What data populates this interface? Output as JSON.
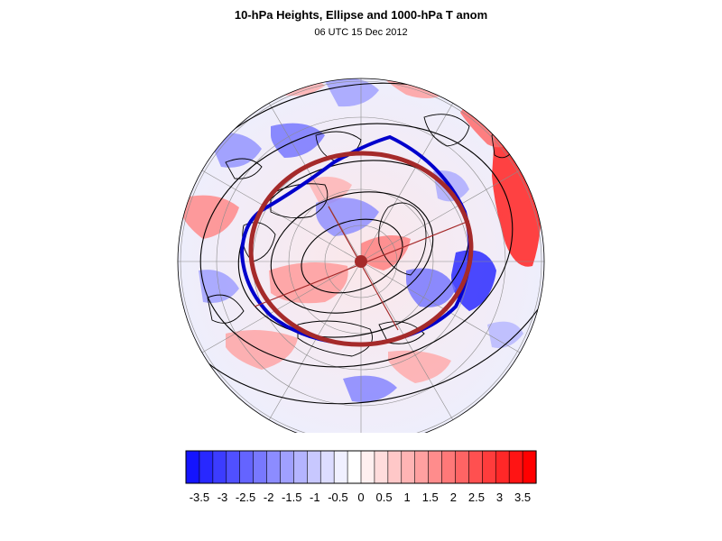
{
  "figure": {
    "title": "10-hPa Heights, Ellipse and 1000-hPa T anom",
    "subtitle": "06 UTC 15 Dec 2012"
  },
  "map": {
    "projection": "polar-stereographic-north",
    "fill_field": "1000-hPa temperature anomaly",
    "contour_field": "10-hPa geopotential height",
    "contour_color": "#000000",
    "coastline_color": "#000000",
    "graticule_color": "#8c8c8c",
    "vortex_edge_color": "#0000cc",
    "ellipse_color": "#a52a2a",
    "ellipse_center_marker": "filled-circle"
  },
  "colorbar": {
    "tick_labels": [
      "-3.5",
      "-3",
      "-2.5",
      "-2",
      "-1.5",
      "-1",
      "-0.5",
      "0",
      "0.5",
      "1",
      "1.5",
      "2",
      "2.5",
      "3",
      "3.5"
    ],
    "bins": [
      "#1414ff",
      "#2828ff",
      "#3c3cff",
      "#5050ff",
      "#6464ff",
      "#7878ff",
      "#8c8cff",
      "#a0a0ff",
      "#b4b4ff",
      "#c8c8ff",
      "#dcdcff",
      "#f0f0ff",
      "#ffffff",
      "#fff0f0",
      "#ffdcdc",
      "#ffc8c8",
      "#ffb4b4",
      "#ffa0a0",
      "#ff8c8c",
      "#ff7878",
      "#ff6464",
      "#ff5050",
      "#ff3c3c",
      "#ff2828",
      "#ff1414",
      "#ff0000"
    ]
  }
}
